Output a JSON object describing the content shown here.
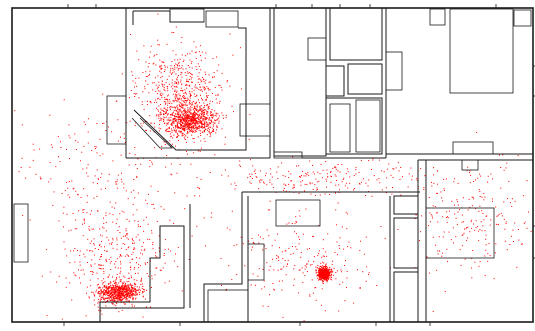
{
  "map": {
    "wall_color": "#1a1a1a",
    "background_color": "#ffffff",
    "heat_color": "#ff0000"
  },
  "density_clusters": [
    {
      "room": "top-left-room",
      "level": "high"
    },
    {
      "room": "top-left-room",
      "level": "high"
    },
    {
      "room": "left-corridor",
      "level": "low"
    },
    {
      "room": "bottom-left-room",
      "level": "medium"
    },
    {
      "room": "bottom-left-room",
      "level": "high"
    },
    {
      "room": "bottom-middle-room",
      "level": "high"
    },
    {
      "room": "bottom-middle-room",
      "level": "low"
    },
    {
      "room": "central-hallway",
      "level": "low"
    },
    {
      "room": "right-rooms",
      "level": "low"
    }
  ]
}
